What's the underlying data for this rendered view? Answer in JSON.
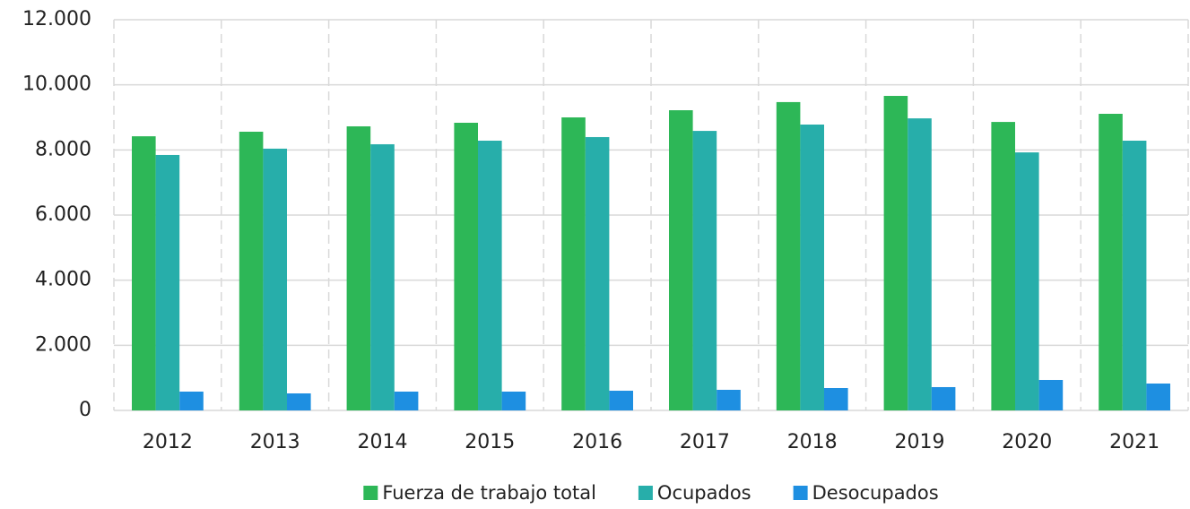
{
  "chart_data": {
    "type": "bar",
    "categories": [
      "2012",
      "2013",
      "2014",
      "2015",
      "2016",
      "2017",
      "2018",
      "2019",
      "2020",
      "2021"
    ],
    "series": [
      {
        "name": "Fuerza de trabajo total",
        "color": "#2db757",
        "values": [
          8420,
          8560,
          8725,
          8835,
          9000,
          9220,
          9470,
          9660,
          8860,
          9110
        ]
      },
      {
        "name": "Ocupados",
        "color": "#27aeaa",
        "values": [
          7845,
          8040,
          8175,
          8285,
          8395,
          8585,
          8780,
          8970,
          7925,
          8285
        ]
      },
      {
        "name": "Desocupados",
        "color": "#1e8fe1",
        "values": [
          578,
          523,
          578,
          578,
          605,
          633,
          688,
          716,
          936,
          826
        ]
      }
    ],
    "ylim": [
      0,
      12000
    ],
    "yticks": [
      {
        "value": 0,
        "label": "0"
      },
      {
        "value": 2000,
        "label": "2.000"
      },
      {
        "value": 4000,
        "label": "4.000"
      },
      {
        "value": 6000,
        "label": "6.000"
      },
      {
        "value": 8000,
        "label": "8.000"
      },
      {
        "value": 10000,
        "label": "10.000"
      },
      {
        "value": 12000,
        "label": "12.000"
      }
    ],
    "grid": true,
    "legend": "bottom"
  }
}
